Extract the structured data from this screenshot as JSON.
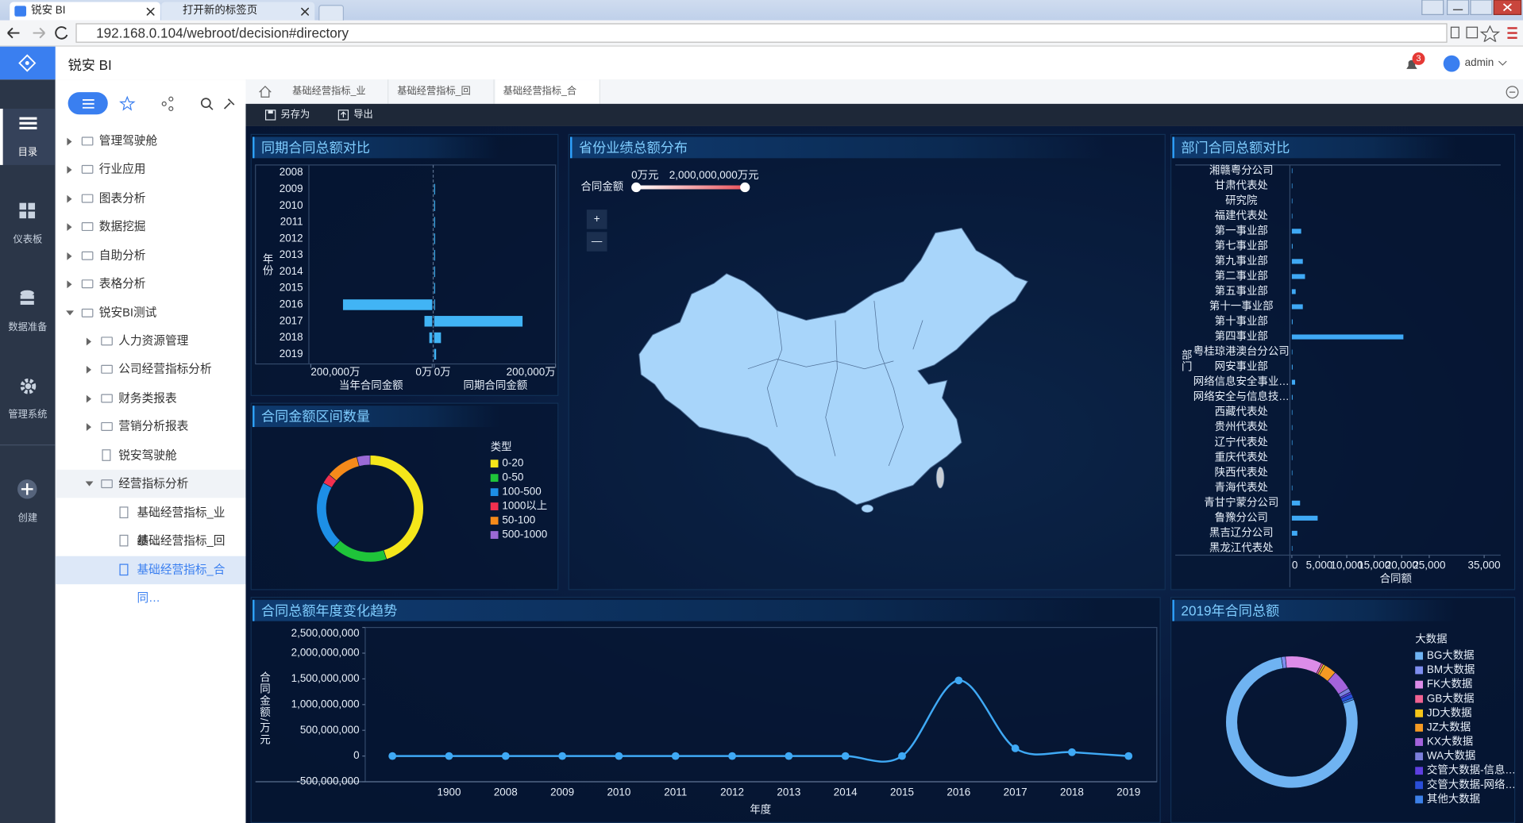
{
  "browser": {
    "tabs": [
      "锐安 BI",
      "打开新的标签页"
    ],
    "url": "192.168.0.104/webroot/decision#directory"
  },
  "header": {
    "app_name": "锐安 BI",
    "notification_count": 3,
    "user": "admin"
  },
  "nav": [
    "目录",
    "仪表板",
    "数据准备",
    "管理系统",
    "创建"
  ],
  "tree": [
    "管理驾驶舱",
    "行业应用",
    "图表分析",
    "数据挖掘",
    "自助分析",
    "表格分析",
    "锐安BI测试",
    "人力资源管理",
    "公司经营指标分析",
    "财务类报表",
    "营销分析报表",
    "锐安驾驶舱",
    "经营指标分析",
    "基础经营指标_业绩…",
    "基础经营指标_回款…",
    "基础经营指标_合同…"
  ],
  "tabs": [
    "基础经营指标_业绩…",
    "基础经营指标_回款…",
    "基础经营指标_合同…"
  ],
  "toolbar": [
    "另存为",
    "导出"
  ],
  "chart_data": [
    {
      "type": "butterfly",
      "title": "同期合同总额对比",
      "y_label": "年份",
      "categories": [
        "2008",
        "2009",
        "2010",
        "2011",
        "2012",
        "2013",
        "2014",
        "2015",
        "2016",
        "2017",
        "2018",
        "2019"
      ],
      "series": [
        {
          "name": "当年合同金额",
          "color": "#41b4f5",
          "values": [
            0,
            0,
            0,
            0,
            0,
            0,
            0,
            0,
            147000,
            12800,
            4800,
            0
          ]
        },
        {
          "name": "同期合同金额",
          "color": "#41b4f5",
          "values": [
            0,
            1500,
            1500,
            1500,
            1500,
            1500,
            1500,
            1500,
            1500,
            145600,
            11200,
            3200
          ]
        }
      ],
      "xlim": [
        0,
        200000
      ],
      "xticks": [
        {
          "value": 200000,
          "label": "200,000万"
        },
        {
          "value": 0,
          "label": "0万"
        }
      ]
    },
    {
      "type": "donut",
      "title": "合同金额区间数量",
      "legend_title": "类型",
      "categories": [
        "0-20",
        "0-50",
        "100-500",
        "1000以上",
        "50-100",
        "500-1000"
      ],
      "values": [
        45,
        17,
        21,
        3,
        10,
        4
      ],
      "colors": [
        "#f5e61a",
        "#1fc43a",
        "#1d8fe6",
        "#f2304f",
        "#f58a1a",
        "#9b6ad6"
      ]
    },
    {
      "type": "map",
      "title": "省份业绩总额分布",
      "legend_title": "合同金额",
      "legend_range": [
        {
          "value": 0,
          "label": "0万元"
        },
        {
          "value": 2000000000,
          "label": "2,000,000,000万元"
        }
      ],
      "zoom_in": "+",
      "zoom_out": "—",
      "color": "#a8d5fa"
    },
    {
      "type": "hbar",
      "title": "部门合同总额对比",
      "x_label": "合同额",
      "y_label": "部门",
      "categories": [
        "湘赣粤分公司",
        "甘肃代表处",
        "研究院",
        "福建代表处",
        "第一事业部",
        "第七事业部",
        "第九事业部",
        "第二事业部",
        "第五事业部",
        "第十一事业部",
        "第十事业部",
        "第四事业部",
        "粤桂琼港澳台分公司",
        "网安事业部",
        "网络信息安全事业…",
        "网络安全与信息技…",
        "西藏代表处",
        "贵州代表处",
        "辽宁代表处",
        "重庆代表处",
        "陕西代表处",
        "青海代表处",
        "青甘宁蒙分公司",
        "鲁豫分公司",
        "黑吉辽分公司",
        "黑龙江代表处"
      ],
      "values": [
        100,
        100,
        100,
        100,
        1700,
        150,
        2000,
        2400,
        700,
        2000,
        150,
        20300,
        100,
        150,
        600,
        150,
        100,
        100,
        100,
        100,
        100,
        100,
        1500,
        4700,
        1000,
        100
      ],
      "color": "#3fa9f5",
      "xlim": [
        0,
        38000
      ],
      "xticks": [
        0,
        {
          "value": 5000,
          "label": "5,000"
        },
        {
          "value": 10000,
          "label": "10,000"
        },
        {
          "value": 15000,
          "label": "15,000"
        },
        {
          "value": 20000,
          "label": "20,000"
        },
        {
          "value": 25000,
          "label": "25,000"
        },
        {
          "value": 35000,
          "label": "35,000"
        }
      ]
    },
    {
      "type": "line",
      "title": "合同总额年度变化趋势",
      "x_label": "年度",
      "y_label": "合同金额/万元",
      "categories": [
        null,
        "1900",
        "2008",
        "2009",
        "2010",
        "2011",
        "2012",
        "2013",
        "2014",
        "2015",
        "2016",
        "2017",
        "2018",
        "2019"
      ],
      "values": [
        0,
        0,
        0,
        0,
        0,
        0,
        0,
        0,
        0,
        0,
        1470000000,
        150000000,
        75000000,
        0
      ],
      "color": "#3fa9f5",
      "ylim": [
        -500000000,
        2500000000
      ],
      "yticks": [
        {
          "value": -500000000,
          "label": "-500,000,000"
        },
        0,
        {
          "value": 500000000,
          "label": "500,000,000"
        },
        {
          "value": 1000000000,
          "label": "1,000,000,000"
        },
        {
          "value": 1500000000,
          "label": "1,500,000,000"
        },
        {
          "value": 2000000000,
          "label": "2,000,000,000"
        },
        {
          "value": 2500000000,
          "label": "2,500,000,000"
        }
      ]
    },
    {
      "type": "donut",
      "title": "2019年合同总额",
      "legend_title": "大数据",
      "categories": [
        "BG大数据",
        "BM大数据",
        "FK大数据",
        "GB大数据",
        "JD大数据",
        "JZ大数据",
        "KX大数据",
        "WA大数据",
        "交管大数据-信息…",
        "交管大数据-网络…",
        "其他大数据"
      ],
      "values": [
        78,
        1,
        9,
        0.5,
        0.5,
        3,
        5,
        1,
        0.5,
        1,
        0.5
      ],
      "colors": [
        "#6fb3f2",
        "#7e8ef0",
        "#dc8ce8",
        "#f06292",
        "#f5c518",
        "#f59a23",
        "#a463dc",
        "#7b7fdc",
        "#5e3fe0",
        "#2a4ed8",
        "#3c80e8"
      ]
    }
  ]
}
